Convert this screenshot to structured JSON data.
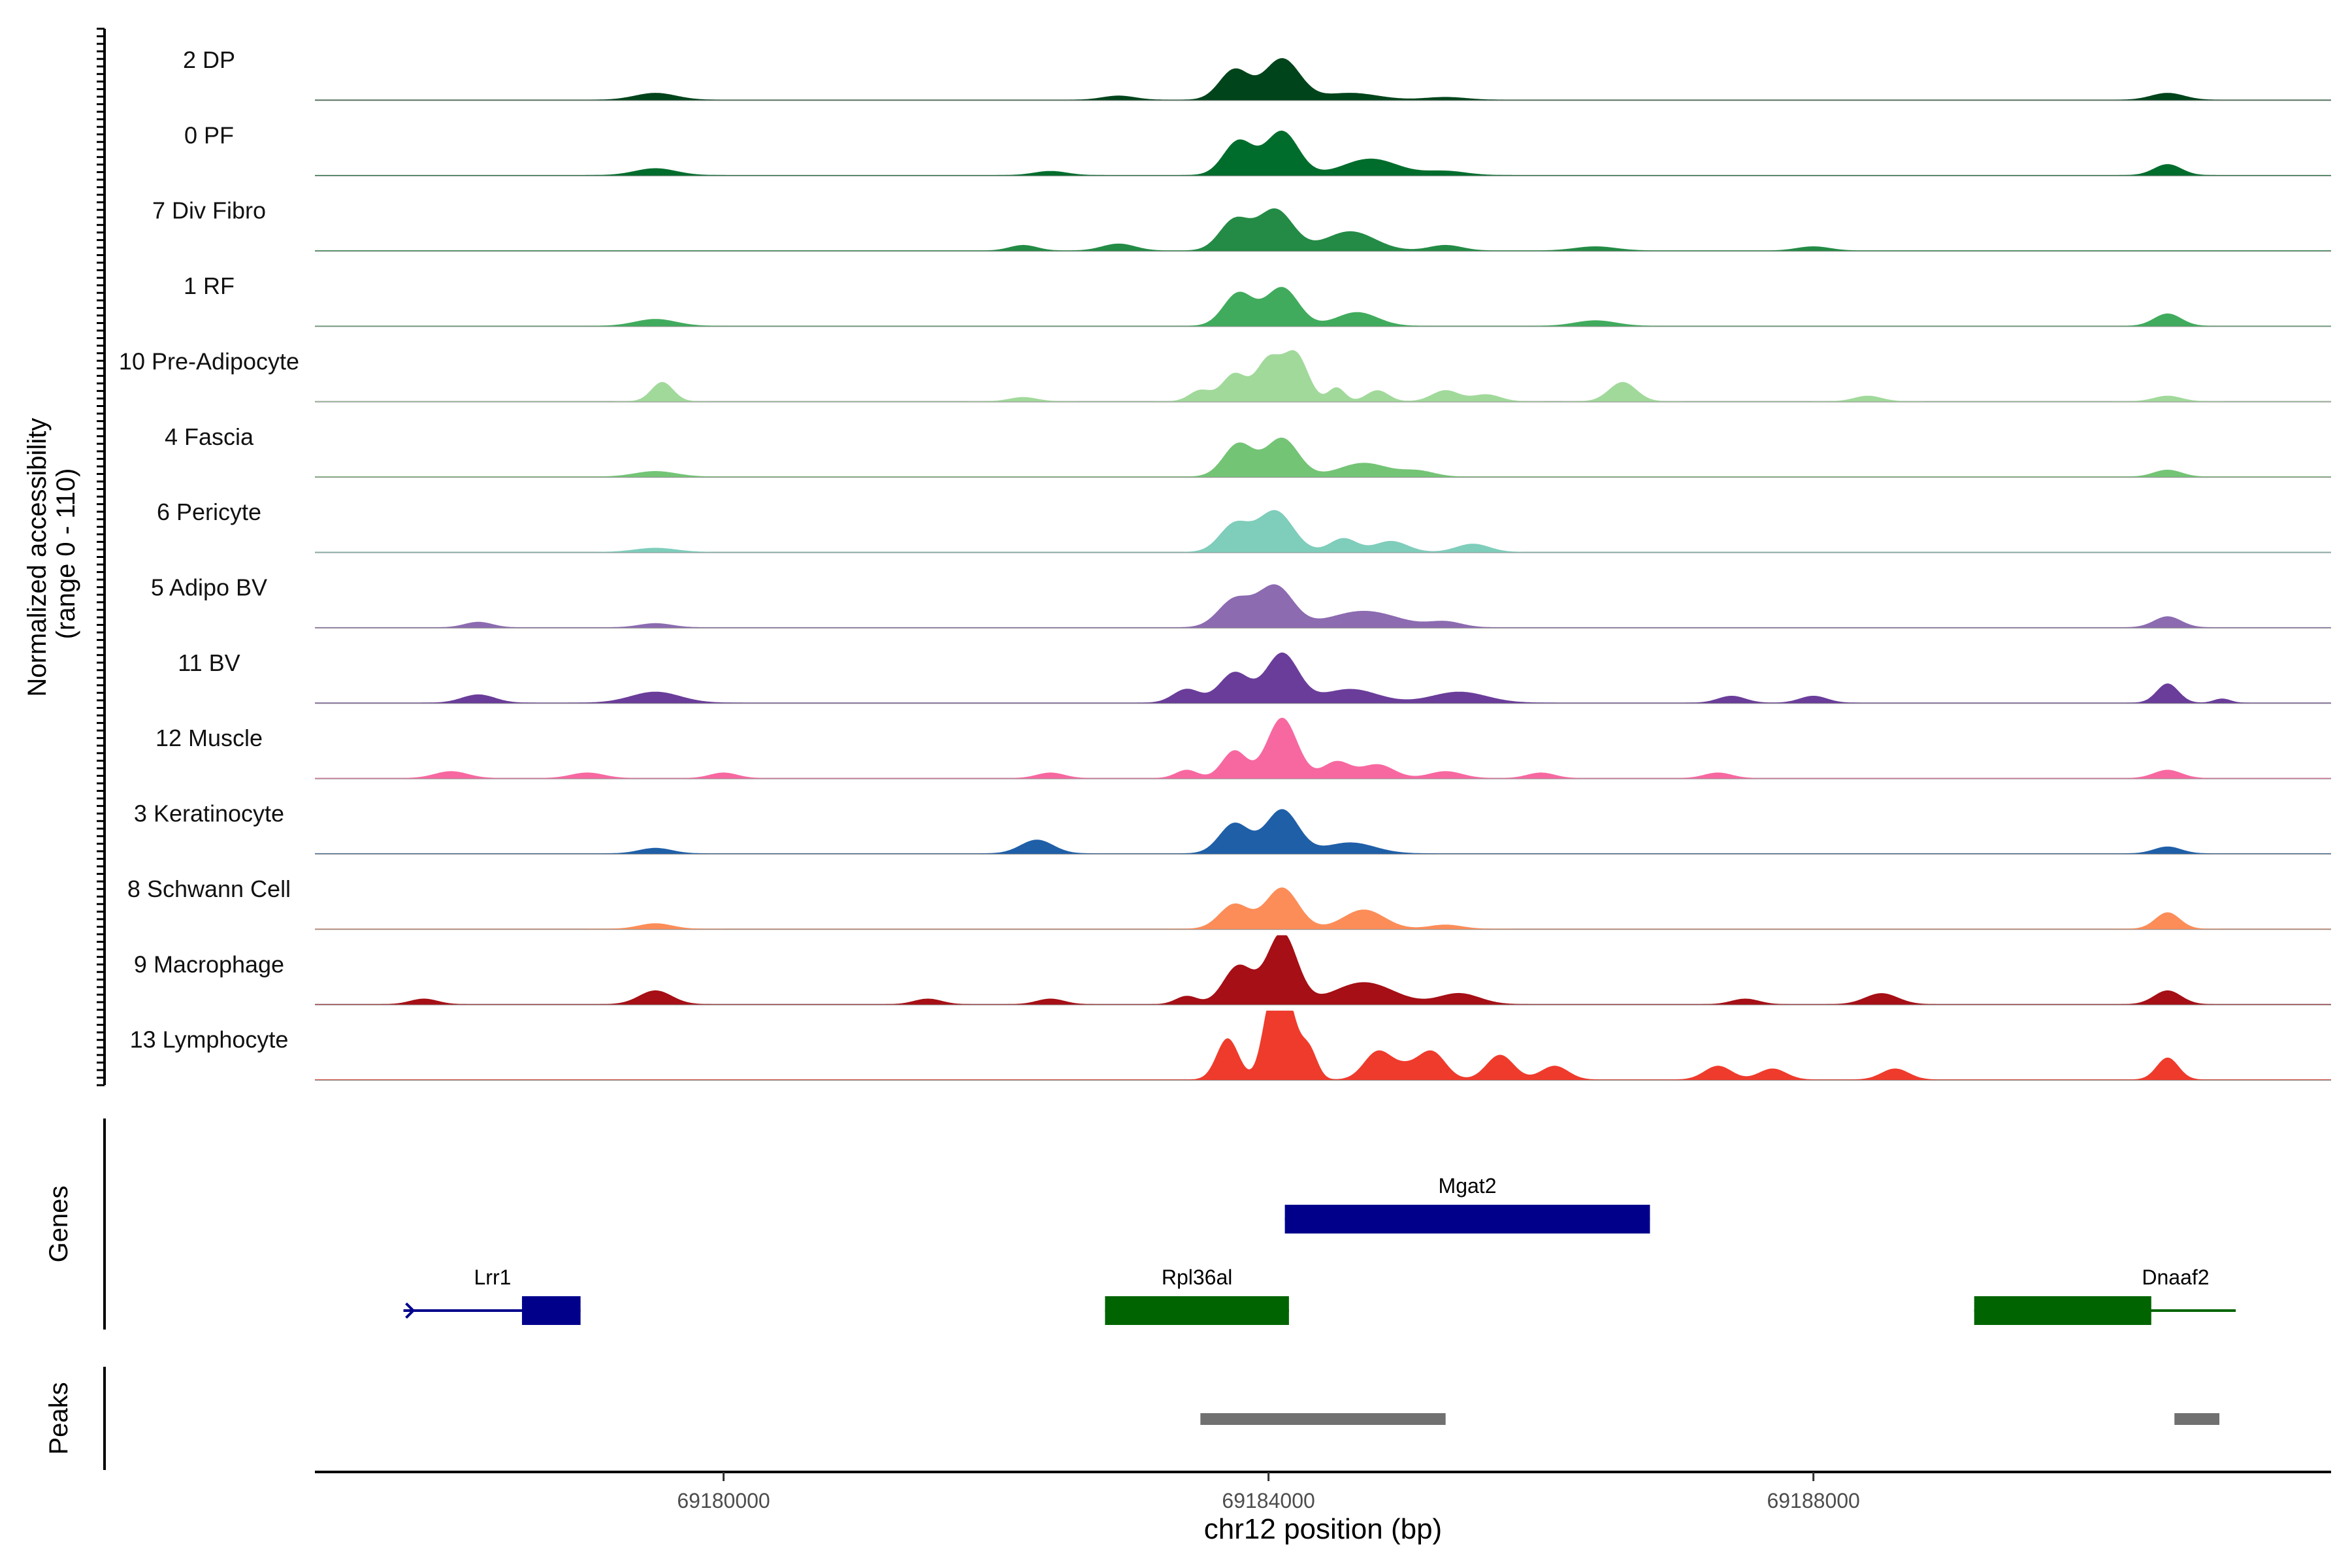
{
  "chart_data": {
    "type": "area",
    "ylabel_line1": "Normalized accessibility",
    "ylabel_line2": "(range 0 - 110)",
    "ylim": [
      0,
      110
    ],
    "xlabel": "chr12 position (bp)",
    "xlim": [
      69177000,
      69191800
    ],
    "x_ticks": [
      69180000,
      69184000,
      69188000
    ],
    "x_tick_labels": [
      "69180000",
      "69184000",
      "69188000"
    ],
    "tracks": [
      {
        "name": "2 DP",
        "color": "#00441b",
        "peaks": [
          [
            69179500,
            5,
            150
          ],
          [
            69182900,
            3,
            120
          ],
          [
            69183750,
            22,
            110
          ],
          [
            69184100,
            30,
            130
          ],
          [
            69184600,
            5,
            200
          ],
          [
            69185300,
            2,
            150
          ],
          [
            69190600,
            5,
            120
          ]
        ]
      },
      {
        "name": "0 PF",
        "color": "#006d2c",
        "peaks": [
          [
            69179500,
            5,
            150
          ],
          [
            69182400,
            3,
            120
          ],
          [
            69183780,
            25,
            110
          ],
          [
            69184100,
            32,
            120
          ],
          [
            69184750,
            12,
            200
          ],
          [
            69185300,
            3,
            150
          ],
          [
            69190600,
            8,
            100
          ]
        ]
      },
      {
        "name": "7 Div Fibro",
        "color": "#238b45",
        "peaks": [
          [
            69182200,
            4,
            100
          ],
          [
            69182900,
            5,
            120
          ],
          [
            69183750,
            22,
            110
          ],
          [
            69184050,
            30,
            130
          ],
          [
            69184600,
            14,
            180
          ],
          [
            69185300,
            4,
            120
          ],
          [
            69186400,
            3,
            150
          ],
          [
            69188000,
            3,
            120
          ]
        ]
      },
      {
        "name": "1 RF",
        "color": "#41ab5d",
        "peaks": [
          [
            69179500,
            5,
            150
          ],
          [
            69183780,
            24,
            110
          ],
          [
            69184100,
            28,
            120
          ],
          [
            69184650,
            10,
            150
          ],
          [
            69186400,
            4,
            150
          ],
          [
            69190600,
            9,
            100
          ]
        ]
      },
      {
        "name": "10 Pre-Adipocyte",
        "color": "#a1d99b",
        "peaks": [
          [
            69179550,
            14,
            80
          ],
          [
            69182200,
            3,
            100
          ],
          [
            69183500,
            8,
            80
          ],
          [
            69183750,
            20,
            90
          ],
          [
            69184000,
            30,
            90
          ],
          [
            69184200,
            34,
            90
          ],
          [
            69184500,
            10,
            60
          ],
          [
            69184800,
            8,
            80
          ],
          [
            69185300,
            8,
            100
          ],
          [
            69185600,
            5,
            100
          ],
          [
            69186600,
            14,
            100
          ],
          [
            69188400,
            4,
            100
          ],
          [
            69190600,
            4,
            100
          ]
        ]
      },
      {
        "name": "4 Fascia",
        "color": "#74c476",
        "peaks": [
          [
            69179500,
            4,
            150
          ],
          [
            69183780,
            24,
            110
          ],
          [
            69184100,
            28,
            120
          ],
          [
            69184700,
            10,
            180
          ],
          [
            69185100,
            4,
            120
          ],
          [
            69190600,
            5,
            100
          ]
        ]
      },
      {
        "name": "6 Pericyte",
        "color": "#7fcdbb",
        "peaks": [
          [
            69179500,
            3,
            150
          ],
          [
            69183750,
            20,
            110
          ],
          [
            69184050,
            30,
            130
          ],
          [
            69184550,
            10,
            100
          ],
          [
            69184900,
            8,
            120
          ],
          [
            69185500,
            6,
            120
          ]
        ]
      },
      {
        "name": "5 Adipo BV",
        "color": "#8c6bb1",
        "peaks": [
          [
            69178200,
            4,
            100
          ],
          [
            69179500,
            3,
            120
          ],
          [
            69183750,
            20,
            120
          ],
          [
            69184050,
            30,
            130
          ],
          [
            69184700,
            12,
            250
          ],
          [
            69185300,
            4,
            120
          ],
          [
            69190600,
            8,
            100
          ]
        ]
      },
      {
        "name": "11 BV",
        "color": "#6a3d9a",
        "peaks": [
          [
            69178200,
            6,
            120
          ],
          [
            69179500,
            8,
            180
          ],
          [
            69183400,
            10,
            100
          ],
          [
            69183750,
            22,
            110
          ],
          [
            69184100,
            36,
            120
          ],
          [
            69184600,
            10,
            200
          ],
          [
            69185400,
            8,
            200
          ],
          [
            69187400,
            5,
            100
          ],
          [
            69188000,
            5,
            100
          ],
          [
            69190600,
            14,
            80
          ],
          [
            69191000,
            3,
            60
          ]
        ]
      },
      {
        "name": "12 Muscle",
        "color": "#f768a1",
        "peaks": [
          [
            69178000,
            5,
            120
          ],
          [
            69179000,
            4,
            120
          ],
          [
            69180000,
            4,
            100
          ],
          [
            69182400,
            4,
            100
          ],
          [
            69183400,
            6,
            80
          ],
          [
            69183750,
            20,
            90
          ],
          [
            69184100,
            44,
            110
          ],
          [
            69184500,
            12,
            100
          ],
          [
            69184800,
            10,
            120
          ],
          [
            69185300,
            5,
            120
          ],
          [
            69186000,
            4,
            100
          ],
          [
            69187300,
            4,
            100
          ],
          [
            69190600,
            6,
            100
          ]
        ]
      },
      {
        "name": "3 Keratinocyte",
        "color": "#1f5fa8",
        "peaks": [
          [
            69179500,
            4,
            120
          ],
          [
            69182300,
            10,
            120
          ],
          [
            69183750,
            22,
            110
          ],
          [
            69184100,
            32,
            120
          ],
          [
            69184600,
            8,
            180
          ],
          [
            69190600,
            5,
            100
          ]
        ]
      },
      {
        "name": "8 Schwann Cell",
        "color": "#fc8d59",
        "peaks": [
          [
            69179500,
            4,
            120
          ],
          [
            69183750,
            18,
            110
          ],
          [
            69184100,
            30,
            120
          ],
          [
            69184700,
            14,
            150
          ],
          [
            69185300,
            3,
            120
          ],
          [
            69190600,
            12,
            90
          ]
        ]
      },
      {
        "name": "9 Macrophage",
        "color": "#a50f15",
        "peaks": [
          [
            69177800,
            4,
            100
          ],
          [
            69179500,
            10,
            120
          ],
          [
            69181500,
            4,
            100
          ],
          [
            69182400,
            4,
            100
          ],
          [
            69183400,
            6,
            80
          ],
          [
            69183780,
            28,
            110
          ],
          [
            69184100,
            52,
            110
          ],
          [
            69184700,
            16,
            220
          ],
          [
            69185400,
            8,
            150
          ],
          [
            69187500,
            4,
            100
          ],
          [
            69188500,
            8,
            120
          ],
          [
            69190600,
            10,
            100
          ]
        ]
      },
      {
        "name": "13 Lymphocyte",
        "color": "#ef3b2c",
        "peaks": [
          [
            69183700,
            30,
            80
          ],
          [
            69184000,
            20,
            60
          ],
          [
            69184100,
            72,
            90
          ],
          [
            69184300,
            20,
            60
          ],
          [
            69184800,
            20,
            100
          ],
          [
            69185000,
            8,
            100
          ],
          [
            69185200,
            20,
            100
          ],
          [
            69185700,
            18,
            100
          ],
          [
            69186100,
            10,
            100
          ],
          [
            69187300,
            10,
            100
          ],
          [
            69187700,
            8,
            100
          ],
          [
            69188600,
            8,
            100
          ],
          [
            69190600,
            16,
            80
          ]
        ]
      }
    ],
    "genes_label": "Genes",
    "genes": [
      {
        "name": "Mgat2",
        "strand": "+",
        "row": 1,
        "color": "#00008b",
        "line": [
          69184120,
          69186800
        ],
        "exons": [
          [
            69184120,
            69186800
          ]
        ]
      },
      {
        "name": "Lrr1",
        "strand": "+",
        "row": 2,
        "color": "#00008b",
        "line": [
          69177650,
          69178950
        ],
        "exons": [
          [
            69178520,
            69178950
          ]
        ]
      },
      {
        "name": "Rpl36al",
        "strand": "+",
        "row": 2,
        "color": "#006400",
        "line": [
          69182800,
          69184150
        ],
        "exons": [
          [
            69182800,
            69184150
          ]
        ]
      },
      {
        "name": "Dnaaf2",
        "strand": "+",
        "row": 2,
        "color": "#006400",
        "line": [
          69189180,
          69191100
        ],
        "exons": [
          [
            69189180,
            69190480
          ]
        ]
      }
    ],
    "peaks_label": "Peaks",
    "peak_regions": [
      [
        69183500,
        69185300
      ],
      [
        69190650,
        69190980
      ]
    ]
  }
}
